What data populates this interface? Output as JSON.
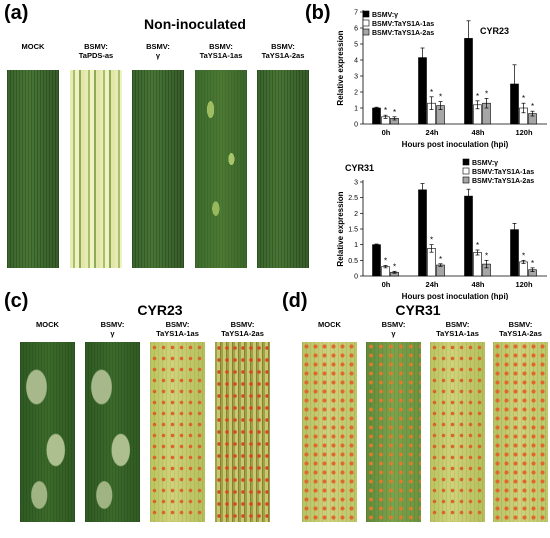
{
  "panel_a": {
    "letter": "(a)",
    "title": "Non-inoculated",
    "labels": [
      "MOCK",
      "BSMV:\nTaPDS-as",
      "BSMV:\nγ",
      "BSMV:\nTaYS1A-1as",
      "BSMV:\nTaYS1A-2as"
    ]
  },
  "panel_b": {
    "letter": "(b)"
  },
  "panel_c": {
    "letter": "(c)",
    "title": "CYR23",
    "labels": [
      "MOCK",
      "BSMV:\nγ",
      "BSMV:\nTaYS1A-1as",
      "BSMV:\nTaYS1A-2as"
    ]
  },
  "panel_d": {
    "letter": "(d)",
    "title": "CYR31",
    "labels": [
      "MOCK",
      "BSMV:\nγ",
      "BSMV:\nTaYS1A-1as",
      "BSMV:\nTaYS1A-2as"
    ]
  },
  "chart_data": [
    {
      "type": "bar",
      "title": "CYR23",
      "xlabel": "Hours post inoculation (hpi)",
      "ylabel": "Relative expression",
      "categories": [
        "0h",
        "24h",
        "48h",
        "120h"
      ],
      "ylim": [
        0,
        7
      ],
      "yticks": [
        "0",
        "1",
        "2",
        "3",
        "4",
        "5",
        "6",
        "7"
      ],
      "legend_position": "top-left",
      "series": [
        {
          "name": "BSMV:γ",
          "color": "#000000",
          "values": [
            1.0,
            4.15,
            5.35,
            2.5
          ],
          "errors": [
            0.05,
            0.6,
            1.1,
            1.2
          ],
          "stars": [
            "",
            "",
            "",
            ""
          ]
        },
        {
          "name": "BSMV:TaYS1A-1as",
          "color": "#ffffff",
          "values": [
            0.45,
            1.3,
            1.2,
            1.0
          ],
          "errors": [
            0.1,
            0.4,
            0.25,
            0.3
          ],
          "stars": [
            "*",
            "*",
            "*",
            "*"
          ]
        },
        {
          "name": "BSMV:TaYS1A-2as",
          "color": "#a6a6a6",
          "values": [
            0.35,
            1.15,
            1.3,
            0.65
          ],
          "errors": [
            0.1,
            0.25,
            0.3,
            0.15
          ],
          "stars": [
            "*",
            "*",
            "*",
            "*"
          ]
        }
      ]
    },
    {
      "type": "bar",
      "title": "CYR31",
      "xlabel": "Hours post inoculation (hpi)",
      "ylabel": "Relative expression",
      "categories": [
        "0h",
        "24h",
        "48h",
        "120h"
      ],
      "ylim": [
        0,
        3
      ],
      "yticks": [
        "0",
        "0.5",
        "1",
        "1.5",
        "2",
        "2.5",
        "3"
      ],
      "legend_position": "top-right",
      "series": [
        {
          "name": "BSMV:γ",
          "color": "#000000",
          "values": [
            1.0,
            2.75,
            2.55,
            1.48
          ],
          "errors": [
            0.02,
            0.2,
            0.22,
            0.2
          ],
          "stars": [
            "",
            "",
            "",
            ""
          ]
        },
        {
          "name": "BSMV:TaYS1A-1as",
          "color": "#ffffff",
          "values": [
            0.3,
            0.88,
            0.75,
            0.45
          ],
          "errors": [
            0.04,
            0.12,
            0.08,
            0.05
          ],
          "stars": [
            "*",
            "*",
            "*",
            "*"
          ]
        },
        {
          "name": "BSMV:TaYS1A-2as",
          "color": "#a6a6a6",
          "values": [
            0.12,
            0.35,
            0.38,
            0.2
          ],
          "errors": [
            0.03,
            0.04,
            0.12,
            0.06
          ],
          "stars": [
            "*",
            "*",
            "*",
            "*"
          ]
        }
      ]
    }
  ]
}
